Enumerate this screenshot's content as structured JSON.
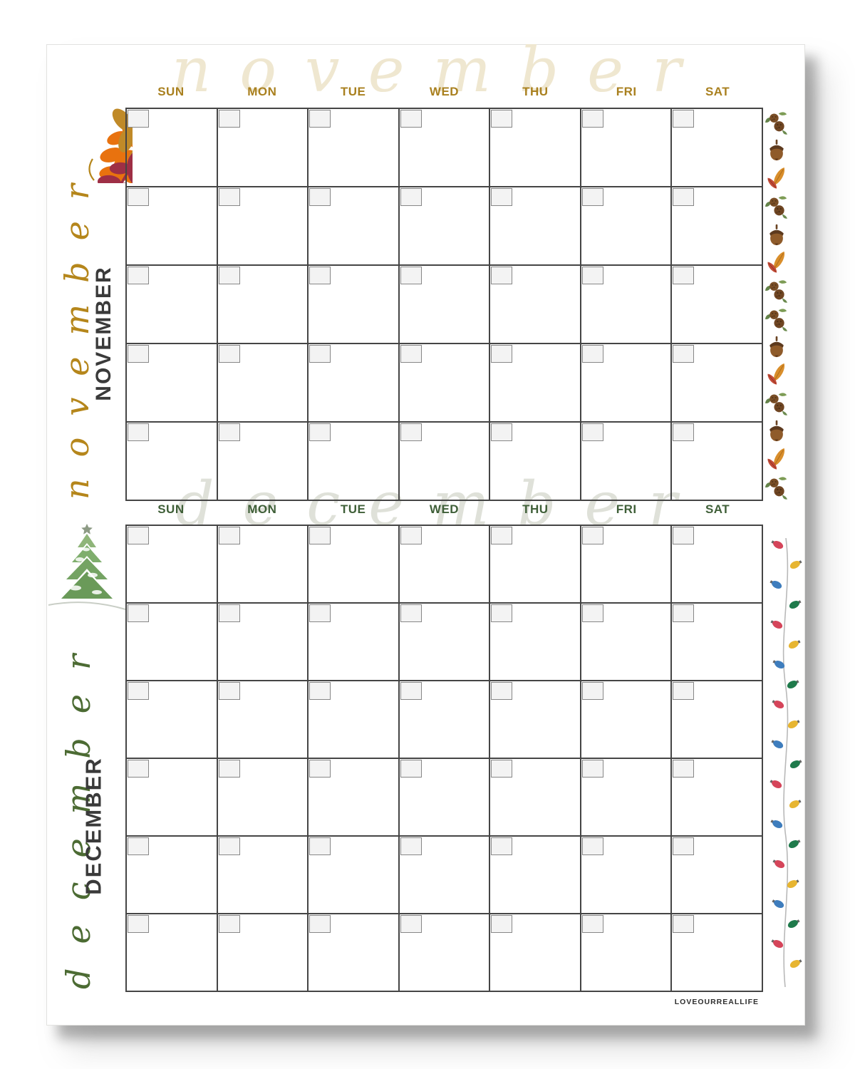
{
  "page": {
    "footer_text": "LOVEOURREALLIFE",
    "background": "#ffffff"
  },
  "months": {
    "november": {
      "watermark": "november",
      "script_name": "november",
      "block_name": "NOVEMBER",
      "days": [
        "SUN",
        "MON",
        "TUE",
        "WED",
        "THU",
        "FRI",
        "SAT"
      ],
      "weeks": 5,
      "header_color": "#a9801f",
      "script_color": "#b5861b",
      "block_color": "#3a3a3a",
      "watermark_color": "#efe7d0"
    },
    "december": {
      "watermark": "december",
      "script_name": "december",
      "block_name": "DECEMBER",
      "days": [
        "SUN",
        "MON",
        "TUE",
        "WED",
        "THU",
        "FRI",
        "SAT"
      ],
      "weeks": 6,
      "header_color": "#3f5f38",
      "script_color": "#4c6b33",
      "block_color": "#3a3a3a",
      "watermark_color": "#dfe1d9"
    }
  },
  "decorations": {
    "november_left_illustration": "autumn-leaves",
    "december_left_illustration": "snow-covered-tree",
    "december_margin_illustration": "string-of-christmas-lights",
    "november_margin_icons": [
      "pinecone-cluster",
      "acorn",
      "fall-leaves",
      "pinecone-cluster",
      "acorn",
      "fall-leaves",
      "pinecone-cluster",
      "pinecone-cluster",
      "acorn",
      "fall-leaves",
      "pinecone-cluster",
      "acorn",
      "fall-leaves",
      "pinecone-cluster"
    ],
    "light_bulb_colors": [
      "#d5455a",
      "#e7b531",
      "#3e7dbd",
      "#1f7a4b"
    ],
    "leaf_colors": [
      "#e8720f",
      "#c08a28",
      "#9e2f45"
    ],
    "grid_line_color": "#454545"
  }
}
